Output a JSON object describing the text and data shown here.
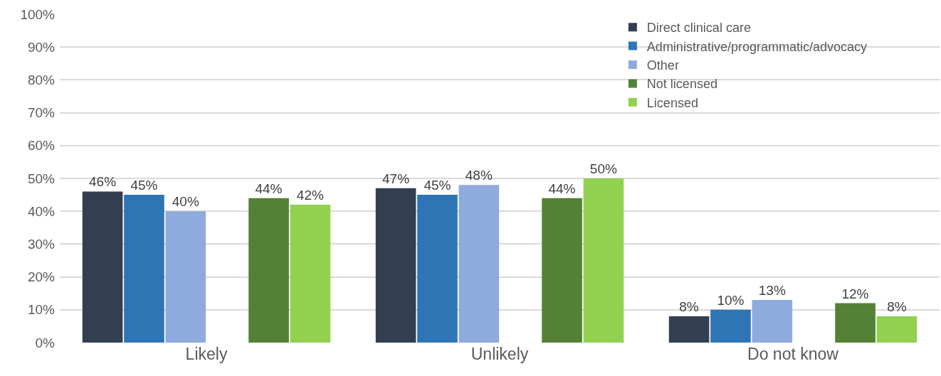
{
  "chart_data": {
    "type": "bar",
    "categories": [
      "Likely",
      "Unlikely",
      "Do not know"
    ],
    "series": [
      {
        "name": "Direct clinical care",
        "color": "#333f50",
        "values": [
          46,
          47,
          8
        ],
        "value_labels": [
          "46%",
          "47%",
          "8%"
        ]
      },
      {
        "name": "Administrative/programmatic/advocacy",
        "color": "#2e75b6",
        "values": [
          45,
          45,
          10
        ],
        "value_labels": [
          "45%",
          "45%",
          "10%"
        ]
      },
      {
        "name": "Other",
        "color": "#8faadc",
        "values": [
          40,
          48,
          13
        ],
        "value_labels": [
          "40%",
          "48%",
          "13%"
        ]
      },
      {
        "values": [
          null,
          null,
          null
        ]
      },
      {
        "name": "Not licensed",
        "color": "#538135",
        "values": [
          44,
          44,
          12
        ],
        "value_labels": [
          "44%",
          "44%",
          "12%"
        ]
      },
      {
        "name": "Licensed",
        "color": "#92d050",
        "values": [
          42,
          50,
          8
        ],
        "value_labels": [
          "42%",
          "50%",
          "8%"
        ]
      }
    ],
    "ylim": [
      0,
      100
    ],
    "yticks": [
      {
        "value": 0,
        "label": "0%"
      },
      {
        "value": 10,
        "label": "10%"
      },
      {
        "value": 20,
        "label": "20%"
      },
      {
        "value": 30,
        "label": "30%"
      },
      {
        "value": 40,
        "label": "40%"
      },
      {
        "value": 50,
        "label": "50%"
      },
      {
        "value": 60,
        "label": "60%"
      },
      {
        "value": 70,
        "label": "70%"
      },
      {
        "value": 80,
        "label": "80%"
      },
      {
        "value": 90,
        "label": "90%"
      },
      {
        "value": 100,
        "label": "100%"
      }
    ],
    "grid": "y",
    "legend": "top right"
  }
}
